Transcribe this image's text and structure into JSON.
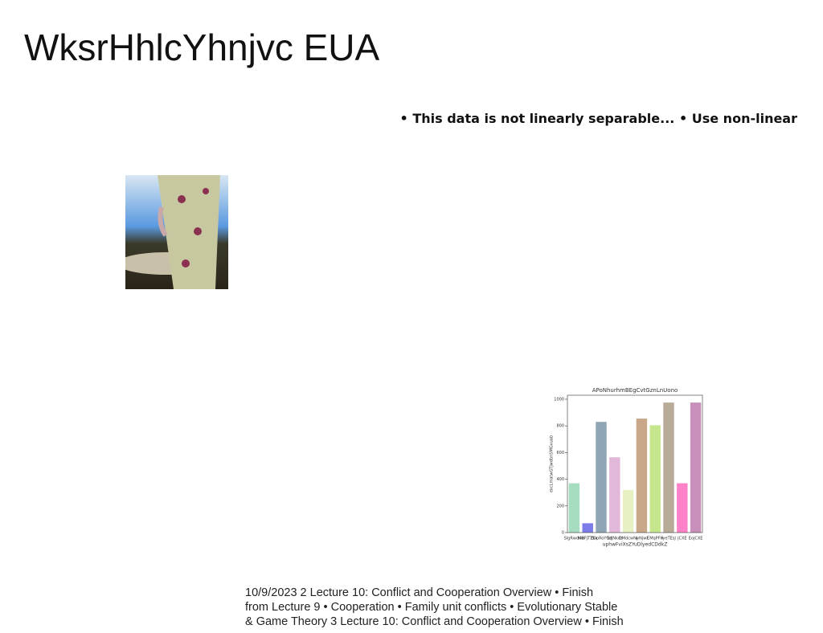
{
  "header": {
    "title": "WksrHhlcYhnjvc EUA"
  },
  "bullets": "• This data is not linearly separable... • Use non-linear",
  "footer": {
    "lines": [
      "10/9/2023 2 Lecture 10: Conflict and Cooperation Overview • Finish",
      "from Lecture 9 • Cooperation • Family unit conflicts • Evolutionary Stable",
      "& Game Theory 3 Lecture 10: Conflict and Cooperation Overview • Finish"
    ]
  },
  "chart_data": {
    "type": "bar",
    "title": "APoNhurhmBEgCvtGznLnUono",
    "x_label": "uphwFviXsZYuDlyedCDdkZ",
    "y_label": "ekcLmatwGTJwdbnSMGxuab",
    "categories": [
      "SlgRwdwa",
      "MBFJTYbx",
      "ZDpRoYQd",
      "SzJNkdz",
      "DMdcwNj",
      "wNjwl",
      "EMqPFH",
      "iyeTEsJ",
      "jCXE",
      "EojCXE"
    ],
    "values": [
      370,
      70,
      830,
      565,
      320,
      855,
      805,
      975,
      370,
      975
    ],
    "colors": [
      "#a6dcbf",
      "#7c7ce8",
      "#8ea6b6",
      "#e2b8da",
      "#e6f0c2",
      "#c8a888",
      "#c6e68e",
      "#b8ab98",
      "#ff82c8",
      "#c78fba"
    ],
    "ylim": [
      0,
      1030
    ],
    "yticks": [
      0,
      200,
      400,
      600,
      800,
      1000
    ]
  }
}
